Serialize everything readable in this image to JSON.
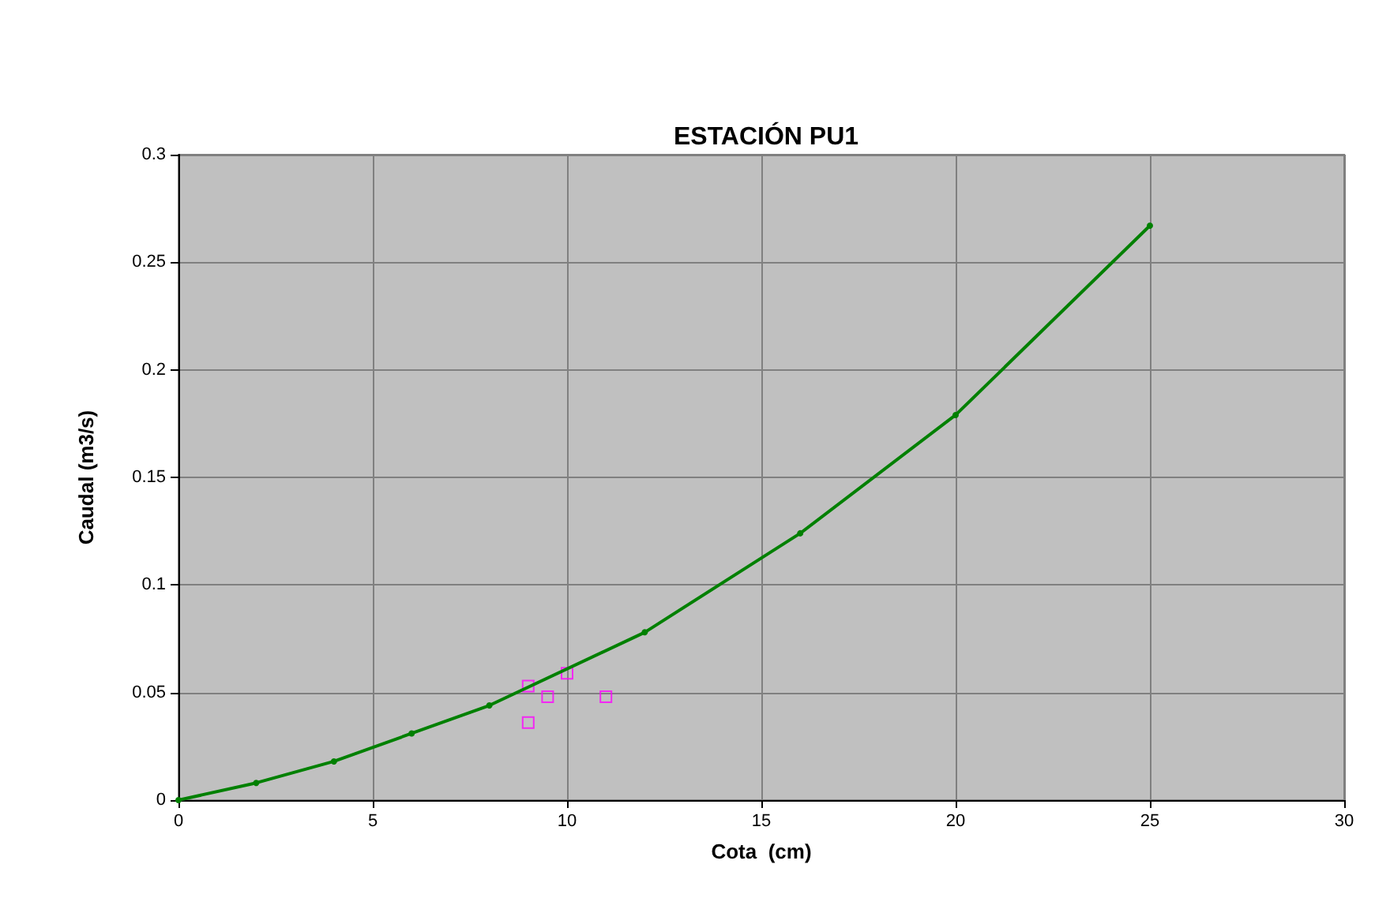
{
  "chart_data": {
    "type": "line",
    "title": "ESTACIÓN PU1",
    "xlabel": "Cota  (cm)",
    "ylabel": "Caudal (m3/s)",
    "series": [
      {
        "color": "#008000",
        "marker": "circle",
        "x": [
          0,
          2,
          4,
          6,
          8,
          12,
          16,
          20,
          25
        ],
        "values": [
          0,
          0.008,
          0.018,
          0.031,
          0.044,
          0.078,
          0.124,
          0.179,
          0.267
        ]
      },
      {
        "type": "scatter",
        "color": "#ff00ff",
        "marker": "square",
        "x": [
          9,
          9.5,
          9,
          10,
          11
        ],
        "values": [
          0.053,
          0.048,
          0.036,
          0.059,
          0.048
        ]
      }
    ],
    "xlim": [
      0,
      30
    ],
    "xticks": [
      0,
      5,
      10,
      15,
      20,
      25,
      30
    ],
    "ylim": [
      0,
      0.3
    ],
    "yticks": [
      0,
      0.05,
      0.1,
      0.15,
      0.2,
      0.25,
      0.3
    ],
    "grid": true
  }
}
